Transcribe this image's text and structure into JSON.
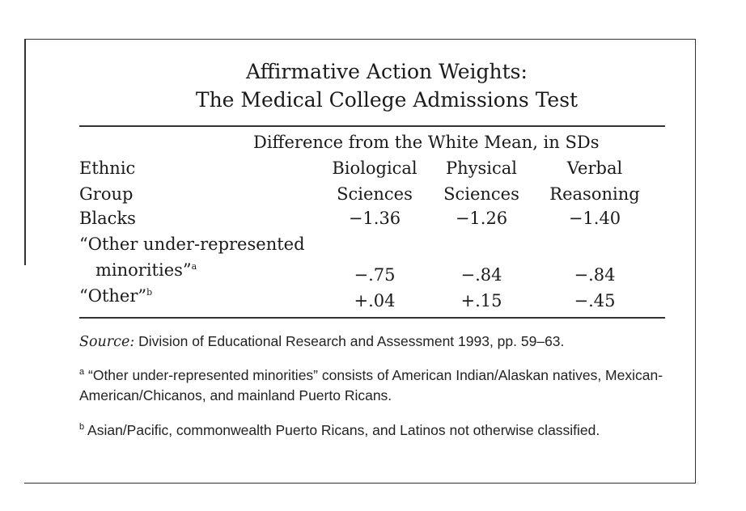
{
  "title_line1": "Affirmative Action Weights:",
  "title_line2": "The Medical College Admissions Test",
  "spanner": "Difference from the White Mean, in SDs",
  "row_header": [
    "Ethnic",
    "Group"
  ],
  "columns": [
    {
      "line1": "Biological",
      "line2": "Sciences"
    },
    {
      "line1": "Physical",
      "line2": "Sciences"
    },
    {
      "line1": "Verbal",
      "line2": "Reasoning"
    }
  ],
  "rows": [
    {
      "label": "Blacks",
      "label2": "",
      "sup": "",
      "values": [
        "−1.36",
        "−1.26",
        "−1.40"
      ]
    },
    {
      "label": "“Other under-represented",
      "label2": "minorities”",
      "sup": "a",
      "values": [
        "−.75",
        "−.84",
        "−.84"
      ]
    },
    {
      "label": "“Other”",
      "label2": "",
      "sup": "b",
      "values": [
        "+.04",
        "+.15",
        "−.45"
      ]
    }
  ],
  "source_label": "Source:",
  "source_text": "Division of Educational Research and Assessment 1993, pp. 59–63.",
  "footnote_a_mark": "a",
  "footnote_a": "“Other under-represented minorities” consists of American Indian/Alaskan natives, Mexican-American/Chicanos, and mainland Puerto Ricans.",
  "footnote_b_mark": "b",
  "footnote_b": "Asian/Pacific, commonwealth Puerto Ricans, and Latinos not otherwise classified."
}
